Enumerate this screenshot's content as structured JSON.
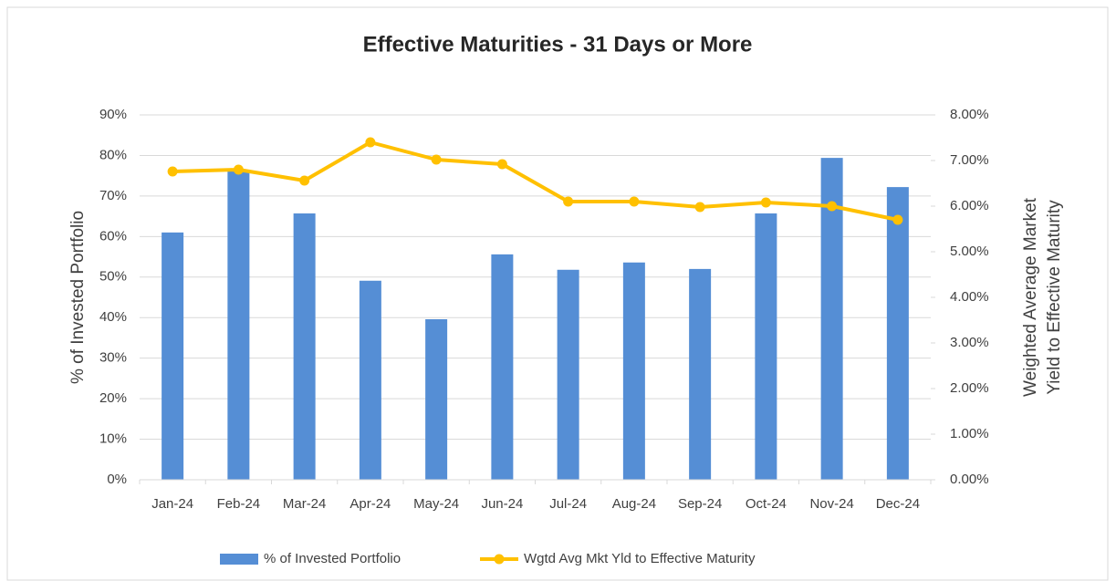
{
  "chart_data": {
    "type": "combo",
    "title": "Effective Maturities - 31 Days or More",
    "ylabel": "% of Invested Portfolio",
    "y2label": [
      "Weighted Average Market",
      "Yield to Effective Maturity"
    ],
    "categories": [
      "Jan-24",
      "Feb-24",
      "Mar-24",
      "Apr-24",
      "May-24",
      "Jun-24",
      "Jul-24",
      "Aug-24",
      "Sep-24",
      "Oct-24",
      "Nov-24",
      "Dec-24"
    ],
    "series": [
      {
        "name": "% of Invested Portfolio",
        "type": "bar",
        "color": "#558ed5",
        "values": [
          61.0,
          76.3,
          65.7,
          49.1,
          39.6,
          55.6,
          51.8,
          53.6,
          52.0,
          65.7,
          79.4,
          72.2
        ]
      },
      {
        "name": "Wgtd Avg Mkt Yld to Effective Maturity",
        "type": "line",
        "color": "#ffc000",
        "axis": "y2",
        "values": [
          6.76,
          6.8,
          6.56,
          7.4,
          7.02,
          6.92,
          6.1,
          6.1,
          5.98,
          6.08,
          6.0,
          5.7
        ]
      }
    ],
    "ylim": [
      0,
      90
    ],
    "yticks": [
      {
        "value": 0,
        "label": "0%"
      },
      {
        "value": 10,
        "label": "10%"
      },
      {
        "value": 20,
        "label": "20%"
      },
      {
        "value": 30,
        "label": "30%"
      },
      {
        "value": 40,
        "label": "40%"
      },
      {
        "value": 50,
        "label": "50%"
      },
      {
        "value": 60,
        "label": "60%"
      },
      {
        "value": 70,
        "label": "70%"
      },
      {
        "value": 80,
        "label": "80%"
      },
      {
        "value": 90,
        "label": "90%"
      }
    ],
    "y2lim": [
      0,
      8
    ],
    "y2ticks": [
      {
        "value": 0,
        "label": "0.00%"
      },
      {
        "value": 1,
        "label": "1.00%"
      },
      {
        "value": 2,
        "label": "2.00%"
      },
      {
        "value": 3,
        "label": "3.00%"
      },
      {
        "value": 4,
        "label": "4.00%"
      },
      {
        "value": 5,
        "label": "5.00%"
      },
      {
        "value": 6,
        "label": "6.00%"
      },
      {
        "value": 7,
        "label": "7.00%"
      },
      {
        "value": 8,
        "label": "8.00%"
      }
    ],
    "grid": true,
    "legend": "bottom"
  }
}
